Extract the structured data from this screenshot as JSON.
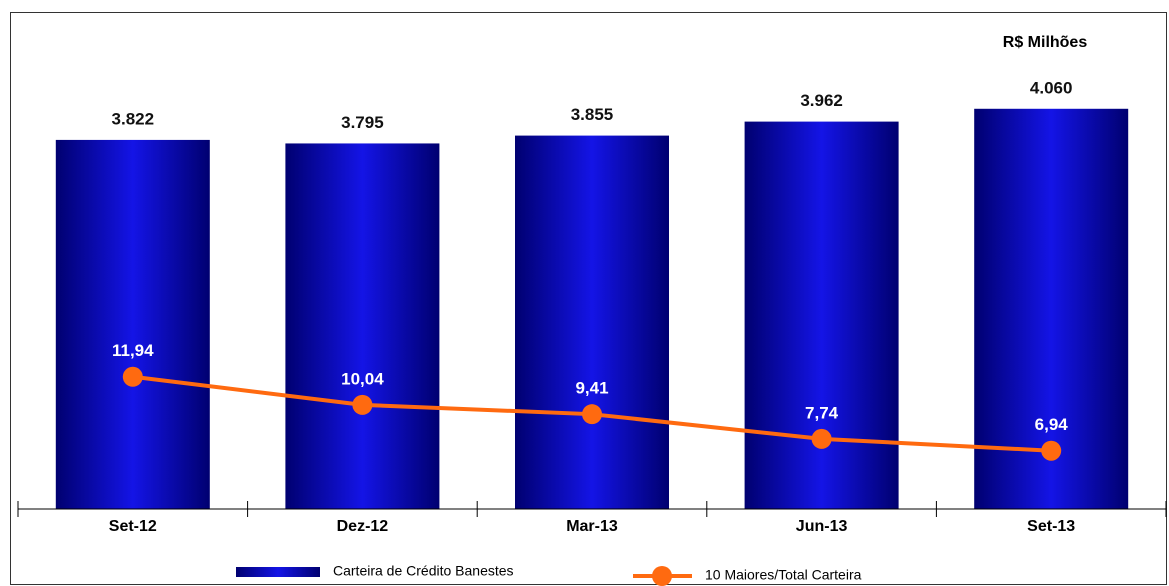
{
  "chart_data": {
    "type": "bar",
    "annotation": "R$ Milhões",
    "categories": [
      "Set-12",
      "Dez-12",
      "Mar-13",
      "Jun-13",
      "Set-13"
    ],
    "series": [
      {
        "name": "Carteira de Crédito Banestes",
        "type": "bar",
        "color": "#1414e6",
        "values": [
          3822,
          3795,
          3855,
          3962,
          4060
        ],
        "value_labels": [
          "3.822",
          "3.795",
          "3.855",
          "3.962",
          "4.060"
        ]
      },
      {
        "name": "10 Maiores/Total Carteira",
        "type": "line",
        "axis": "y2",
        "color": "#ff6a10",
        "values": [
          11.94,
          10.04,
          9.41,
          7.74,
          6.94
        ],
        "value_labels": [
          "11,94",
          "10,04",
          "9,41",
          "7,74",
          "6,94"
        ]
      }
    ],
    "ylim": [
      1000,
      4800
    ],
    "y2lim": [
      3,
      36.6
    ],
    "legend": "bottom"
  }
}
